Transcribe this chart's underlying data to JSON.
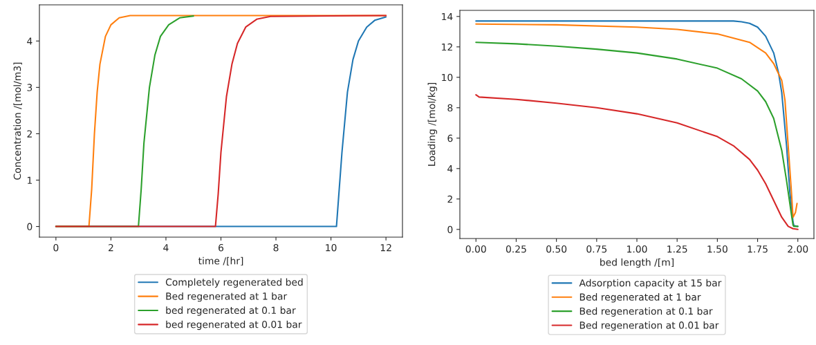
{
  "chart_data": [
    {
      "type": "line",
      "xlabel": "time /[hr]",
      "ylabel": "Concentration /[mol/m3]",
      "xlim": [
        -0.6,
        12.6
      ],
      "ylim": [
        -0.23,
        4.78
      ],
      "xticks": [
        0,
        2,
        4,
        6,
        8,
        10,
        12
      ],
      "yticks": [
        0,
        1,
        2,
        3,
        4
      ],
      "grid": false,
      "legend": "bottom",
      "line_style": "solid",
      "marker": "none",
      "series": [
        {
          "name": "Completely regenerated bed",
          "color": "#1f77b4",
          "x": [
            0,
            10.2,
            10.3,
            10.4,
            10.6,
            10.8,
            11.0,
            11.3,
            11.6,
            12
          ],
          "values": [
            0,
            0,
            0.8,
            1.6,
            2.9,
            3.6,
            4.0,
            4.3,
            4.45,
            4.52
          ]
        },
        {
          "name": "Bed regenerated at 1 bar",
          "color": "#ff7f0e",
          "x": [
            0,
            1.2,
            1.3,
            1.4,
            1.5,
            1.6,
            1.8,
            2.0,
            2.3,
            2.7,
            12
          ],
          "values": [
            0,
            0,
            0.8,
            2.0,
            2.9,
            3.5,
            4.1,
            4.35,
            4.5,
            4.55,
            4.55
          ]
        },
        {
          "name": "bed regenerated at 0.1 bar",
          "color": "#2ca02c",
          "x": [
            0,
            3.0,
            3.1,
            3.2,
            3.4,
            3.6,
            3.8,
            4.1,
            4.5,
            5.0
          ],
          "values": [
            0,
            0,
            0.8,
            1.8,
            3.0,
            3.7,
            4.1,
            4.35,
            4.5,
            4.54
          ]
        },
        {
          "name": "bed regenerated at 0.01 bar",
          "color": "#d62728",
          "x": [
            0,
            5.8,
            5.9,
            6.0,
            6.2,
            6.4,
            6.6,
            6.9,
            7.3,
            7.8,
            12
          ],
          "values": [
            0,
            0,
            0.7,
            1.6,
            2.8,
            3.5,
            3.95,
            4.3,
            4.47,
            4.53,
            4.55
          ]
        }
      ]
    },
    {
      "type": "line",
      "xlabel": "bed length /[m]",
      "ylabel": "Loading /[mol/kg]",
      "xlim": [
        -0.1,
        2.1
      ],
      "ylim": [
        -0.6,
        14.4
      ],
      "xticks": [
        {
          "value": 0,
          "label": "0.00"
        },
        {
          "value": 0.25,
          "label": "0.25"
        },
        {
          "value": 0.5,
          "label": "0.50"
        },
        {
          "value": 0.75,
          "label": "0.75"
        },
        {
          "value": 1,
          "label": "1.00"
        },
        {
          "value": 1.25,
          "label": "1.25"
        },
        {
          "value": 1.5,
          "label": "1.50"
        },
        {
          "value": 1.75,
          "label": "1.75"
        },
        {
          "value": 2,
          "label": "2.00"
        }
      ],
      "yticks": [
        0,
        2,
        4,
        6,
        8,
        10,
        12,
        14
      ],
      "grid": false,
      "legend": "bottom",
      "line_style": "solid",
      "marker": "none",
      "series": [
        {
          "name": "Adsorption capacity at 15 bar",
          "color": "#1f77b4",
          "x": [
            0,
            1.6,
            1.65,
            1.7,
            1.75,
            1.8,
            1.85,
            1.88,
            1.9,
            1.93,
            1.95,
            1.97,
            1.975,
            2.0
          ],
          "values": [
            13.7,
            13.7,
            13.65,
            13.55,
            13.3,
            12.7,
            11.6,
            10.3,
            9,
            5.5,
            2.5,
            0.5,
            0.25,
            0.2
          ]
        },
        {
          "name": "Bed regenerated at 1 bar",
          "color": "#ff7f0e",
          "x": [
            0,
            0.5,
            1.0,
            1.25,
            1.5,
            1.7,
            1.8,
            1.85,
            1.9,
            1.92,
            1.94,
            1.96,
            1.97,
            1.985,
            1.995
          ],
          "values": [
            13.5,
            13.45,
            13.3,
            13.15,
            12.85,
            12.3,
            11.6,
            10.9,
            9.8,
            8.5,
            5.5,
            2.5,
            0.8,
            1.1,
            1.7
          ]
        },
        {
          "name": "Bed regeneration at 0.1 bar",
          "color": "#2ca02c",
          "x": [
            0,
            0.25,
            0.5,
            0.75,
            1.0,
            1.25,
            1.5,
            1.65,
            1.75,
            1.8,
            1.85,
            1.9,
            1.93,
            1.96,
            1.97,
            1.975,
            2.0
          ],
          "values": [
            12.3,
            12.2,
            12.05,
            11.85,
            11.6,
            11.2,
            10.6,
            9.9,
            9.1,
            8.4,
            7.3,
            5.2,
            3.2,
            1.0,
            0.3,
            0.2,
            0.2
          ]
        },
        {
          "name": "Bed regeneration at 0.01 bar",
          "color": "#d62728",
          "x": [
            0,
            0.02,
            0.25,
            0.5,
            0.75,
            1.0,
            1.25,
            1.5,
            1.6,
            1.7,
            1.75,
            1.8,
            1.85,
            1.9,
            1.94,
            1.97,
            2.0
          ],
          "values": [
            8.85,
            8.7,
            8.55,
            8.3,
            8.0,
            7.6,
            7.0,
            6.1,
            5.5,
            4.6,
            3.9,
            3.0,
            1.9,
            0.8,
            0.2,
            0.05,
            0.0
          ]
        }
      ]
    }
  ]
}
